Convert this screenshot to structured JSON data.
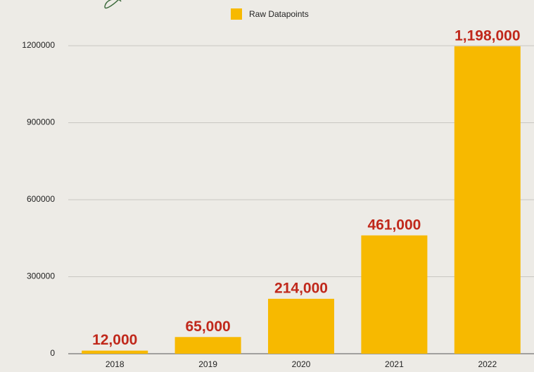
{
  "chart_data": {
    "type": "bar",
    "categories": [
      "2018",
      "2019",
      "2020",
      "2021",
      "2022"
    ],
    "series": [
      {
        "name": "Raw Datapoints",
        "color": "#f7b900",
        "values": [
          12000,
          65000,
          214000,
          461000,
          1198000
        ],
        "value_labels": [
          "12,000",
          "65,000",
          "214,000",
          "461,000",
          "1,198,000"
        ]
      }
    ],
    "ylim": [
      0,
      1200000
    ],
    "yticks": [
      0,
      300000,
      600000,
      900000,
      1200000
    ],
    "grid": true
  }
}
